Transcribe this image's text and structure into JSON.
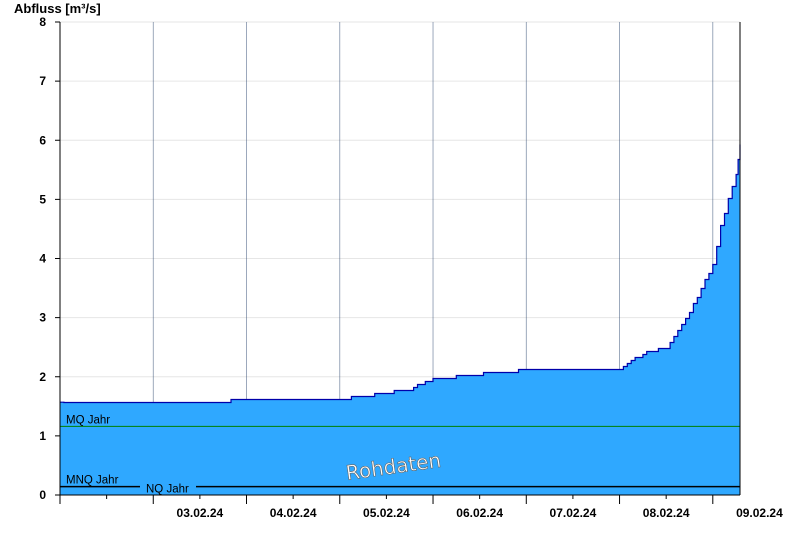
{
  "chart_data": {
    "type": "area",
    "ylabel": "Abfluss [m³/s]",
    "xlabel": "",
    "ylim": [
      0,
      8
    ],
    "yticks": [
      0,
      1,
      2,
      3,
      4,
      5,
      6,
      7,
      8
    ],
    "x_range": [
      "02.02.24 00:00",
      "09.02.24 07:00"
    ],
    "x_tick_labels": [
      "03.02.24",
      "04.02.24",
      "05.02.24",
      "06.02.24",
      "07.02.24",
      "08.02.24",
      "09.02.24"
    ],
    "grid": true,
    "fill_color": "#2fa8ff",
    "line_color": "#0000aa",
    "reference_lines": [
      {
        "label": "MQ Jahr",
        "value": 1.16,
        "color": "#008000"
      },
      {
        "label": "MNQ Jahr",
        "value": 0.15,
        "color": "#000000"
      },
      {
        "label": "NQ Jahr",
        "value": 0.15,
        "color": "#000000"
      }
    ],
    "watermark": "Rohdaten",
    "series": [
      {
        "x": [
          "02.02.24 00:00",
          "02.02.24 12:00",
          "03.02.24 00:00",
          "03.02.24 12:00",
          "03.02.24 18:00",
          "04.02.24 00:00",
          "04.02.24 12:00",
          "05.02.24 00:00",
          "05.02.24 06:00",
          "05.02.24 12:00",
          "05.02.24 18:00",
          "06.02.24 00:00",
          "06.02.24 12:00",
          "07.02.24 00:00",
          "07.02.24 12:00",
          "07.02.24 18:00",
          "08.02.24 00:00",
          "08.02.24 06:00",
          "08.02.24 12:00",
          "08.02.24 18:00",
          "09.02.24 00:00",
          "09.02.24 02:00",
          "09.02.24 04:00",
          "09.02.24 06:00",
          "09.02.24 07:00"
        ],
        "values": [
          1.57,
          1.57,
          1.57,
          1.57,
          1.59,
          1.62,
          1.62,
          1.62,
          1.68,
          1.73,
          1.8,
          1.97,
          2.05,
          2.12,
          2.12,
          2.12,
          2.13,
          2.4,
          2.5,
          3.1,
          3.9,
          4.55,
          5.0,
          5.45,
          5.95
        ]
      }
    ]
  }
}
